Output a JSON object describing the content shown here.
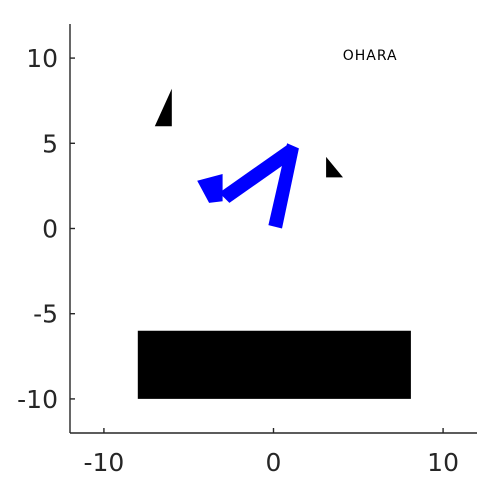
{
  "chart_data": {
    "type": "diagram",
    "xlim": [
      -12,
      12
    ],
    "ylim": [
      -12,
      12
    ],
    "grid": false,
    "x_ticks": [
      {
        "value": -10,
        "label": "-10"
      },
      {
        "value": 0,
        "label": "0"
      },
      {
        "value": 10,
        "label": "10"
      }
    ],
    "y_ticks": [
      {
        "value": 10,
        "label": "10"
      },
      {
        "value": 5,
        "label": "5"
      },
      {
        "value": 0,
        "label": "0"
      },
      {
        "value": -5,
        "label": "-5"
      },
      {
        "value": -10,
        "label": "-10"
      }
    ],
    "annotation": {
      "text": "OHARA",
      "x": 5.7,
      "y": 9.9
    },
    "shapes": [
      {
        "name": "triangle-left",
        "color": "#000000",
        "points": [
          [
            -7.0,
            6.0
          ],
          [
            -6.0,
            8.2
          ],
          [
            -6.0,
            6.0
          ]
        ]
      },
      {
        "name": "triangle-right",
        "color": "#000000",
        "points": [
          [
            3.1,
            4.2
          ],
          [
            3.1,
            3.0
          ],
          [
            4.1,
            3.0
          ]
        ]
      },
      {
        "name": "rectangle",
        "color": "#000000",
        "points": [
          [
            -8.0,
            -6.0
          ],
          [
            8.1,
            -6.0
          ],
          [
            8.1,
            -10.0
          ],
          [
            -8.0,
            -10.0
          ]
        ]
      },
      {
        "name": "blue-stroke-main",
        "color": "#0000ff",
        "points": [
          [
            -3.2,
            2.1
          ],
          [
            0.8,
            4.9
          ],
          [
            1.4,
            4.3
          ],
          [
            -2.6,
            1.5
          ]
        ]
      },
      {
        "name": "blue-stroke-down",
        "color": "#0000ff",
        "points": [
          [
            0.8,
            5.0
          ],
          [
            1.5,
            4.7
          ],
          [
            0.5,
            0.0
          ],
          [
            -0.3,
            0.2
          ]
        ]
      },
      {
        "name": "blue-stroke-tail",
        "color": "#0000ff",
        "points": [
          [
            -4.5,
            2.8
          ],
          [
            -3.0,
            3.2
          ],
          [
            -3.0,
            1.6
          ],
          [
            -3.8,
            1.5
          ]
        ]
      }
    ]
  }
}
